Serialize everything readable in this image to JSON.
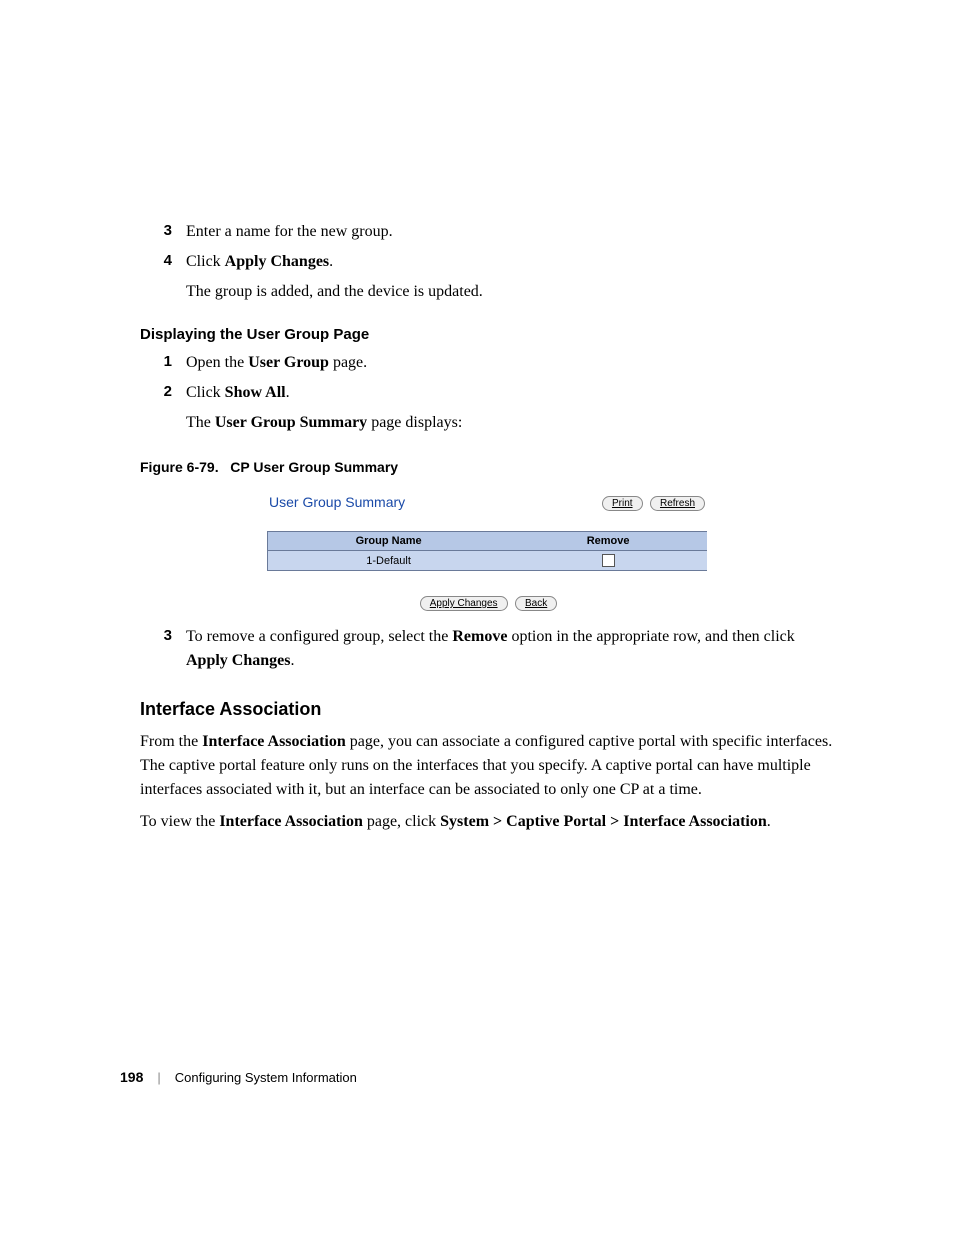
{
  "list1": [
    {
      "num": "3",
      "body": "Enter a name for the new group."
    },
    {
      "num": "4",
      "body_pre": "Click ",
      "body_bold": "Apply Changes",
      "body_post": ".",
      "sub": "The group is added, and the device is updated."
    }
  ],
  "section1_heading": "Displaying the User Group Page",
  "list2": [
    {
      "num": "1",
      "body_pre": "Open the ",
      "body_bold": "User Group",
      "body_post": " page."
    },
    {
      "num": "2",
      "body_pre": "Click ",
      "body_bold": "Show All",
      "body_post": ".",
      "sub_pre": "The ",
      "sub_bold": "User Group Summary",
      "sub_post": " page displays:"
    }
  ],
  "figure_caption_label": "Figure 6-79.",
  "figure_caption_title": "CP User Group Summary",
  "screenshot": {
    "title": "User Group Summary",
    "print_btn": "Print",
    "refresh_btn": "Refresh",
    "col1": "Group Name",
    "col2": "Remove",
    "row1": "1-Default",
    "apply_btn": "Apply Changes",
    "back_btn": "Back"
  },
  "list3": [
    {
      "num": "3",
      "t1": "To remove a configured group, select the ",
      "b1": "Remove",
      "t2": " option in the appropriate row, and then click ",
      "b2": "Apply Changes",
      "t3": "."
    }
  ],
  "h2": "Interface Association",
  "para1_t1": "From the ",
  "para1_b1": "Interface Association",
  "para1_t2": " page, you can associate a configured captive portal with specific interfaces. The captive portal feature only runs on the interfaces that you specify. A captive portal can have multiple interfaces associated with it, but an interface can be associated to only one CP at a time.",
  "para2_t1": "To view the ",
  "para2_b1": "Interface Association",
  "para2_t2": " page, click ",
  "para2_b2": "System > Captive Portal > Interface Association",
  "para2_t3": ".",
  "footer_page": "198",
  "footer_sep": "|",
  "footer_text": "Configuring System Information"
}
